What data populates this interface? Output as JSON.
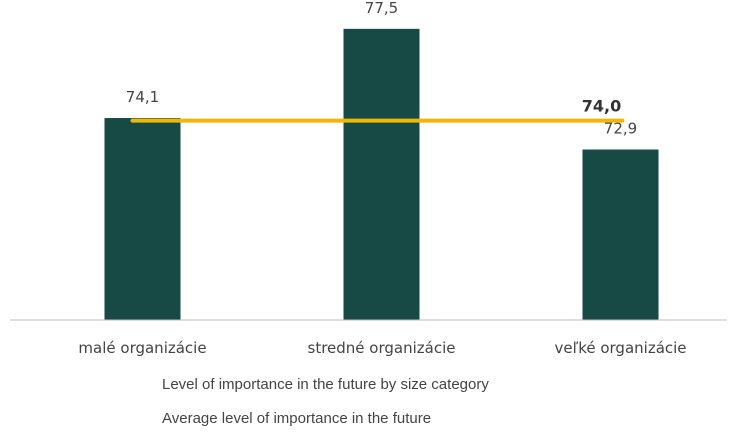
{
  "chart_data": {
    "type": "bar",
    "categories": [
      "malé organizácie",
      "stredné organizácie",
      "veľké organizácie"
    ],
    "series": [
      {
        "name": "Level of importance in the future by size category",
        "type": "bar",
        "values": [
          74.1,
          77.5,
          72.9
        ],
        "value_labels": [
          "74,1",
          "77,5",
          "72,9"
        ],
        "color": "#174a45"
      },
      {
        "name": "Average level of importance in the future",
        "type": "line",
        "value": 74.0,
        "value_label": "74,0",
        "color": "#f2b705"
      }
    ],
    "ylim": [
      66.4,
      78.6
    ],
    "grid": false,
    "legend_position": "bottom-left"
  }
}
